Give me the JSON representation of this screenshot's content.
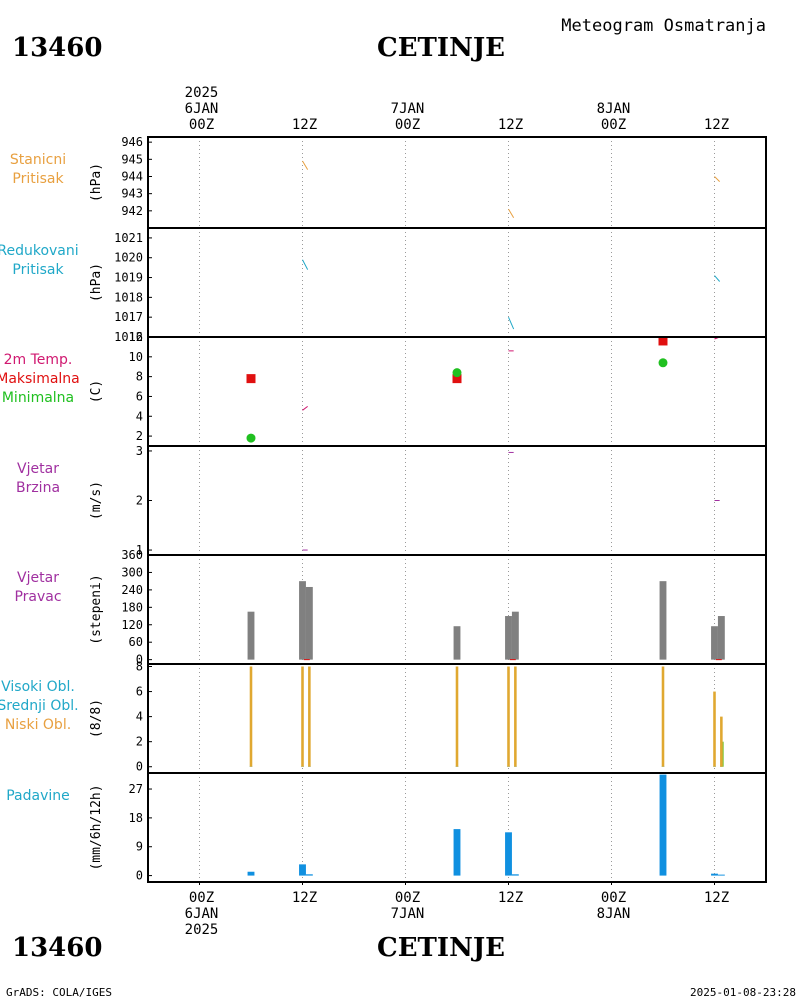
{
  "header": {
    "station_id": "13460",
    "station_name": "CETINJE",
    "chart_kind": "Meteogram Osmatranja"
  },
  "footer": {
    "station_id": "13460",
    "station_name": "CETINJE",
    "credit": "GrADS: COLA/IGES",
    "timestamp": "2025-01-08-23:28"
  },
  "chart_data": {
    "type": "meteogram",
    "time_axis": {
      "unit": "hours since 2025-01-06 00Z",
      "range": [
        -6,
        66
      ],
      "grid_hours": [
        0,
        12,
        24,
        36,
        48,
        60
      ],
      "top_labels": [
        {
          "h": 0,
          "lines": [
            "2025",
            "6JAN",
            "00Z"
          ]
        },
        {
          "h": 12,
          "lines": [
            "12Z"
          ]
        },
        {
          "h": 24,
          "lines": [
            "7JAN",
            "00Z"
          ]
        },
        {
          "h": 36,
          "lines": [
            "12Z"
          ]
        },
        {
          "h": 48,
          "lines": [
            "8JAN",
            "00Z"
          ]
        },
        {
          "h": 60,
          "lines": [
            "12Z"
          ]
        }
      ],
      "bottom_labels": [
        {
          "h": 0,
          "lines": [
            "00Z",
            "6JAN",
            "2025"
          ]
        },
        {
          "h": 12,
          "lines": [
            "12Z"
          ]
        },
        {
          "h": 24,
          "lines": [
            "00Z",
            "7JAN"
          ]
        },
        {
          "h": 36,
          "lines": [
            "12Z"
          ]
        },
        {
          "h": 48,
          "lines": [
            "00Z",
            "8JAN"
          ]
        },
        {
          "h": 60,
          "lines": [
            "12Z"
          ]
        }
      ]
    },
    "panels": [
      {
        "id": "station-pressure",
        "labels": [
          {
            "text": "Stanicni",
            "color": "#e8a040"
          },
          {
            "text": "Pritisak",
            "color": "#e8a040"
          }
        ],
        "unit": "(hPa)",
        "ylim": [
          941,
          946.3
        ],
        "ticks": [
          942,
          943,
          944,
          945,
          946
        ],
        "series": [
          {
            "name": "",
            "color": "#e8a040",
            "kind": "line",
            "points": [
              [
                12,
                944.9
              ],
              [
                12.6,
                944.4
              ],
              [
                36,
                942.1
              ],
              [
                36.6,
                941.6
              ],
              [
                60,
                944.0
              ],
              [
                60.6,
                943.7
              ]
            ]
          }
        ]
      },
      {
        "id": "reduced-pressure",
        "labels": [
          {
            "text": "Redukovani",
            "color": "#20a8c8"
          },
          {
            "text": "Pritisak",
            "color": "#20a8c8"
          }
        ],
        "unit": "(hPa)",
        "ylim": [
          1016,
          1021.5
        ],
        "ticks": [
          1016,
          1017,
          1018,
          1019,
          1020,
          1021
        ],
        "tick_labels": [
          "1016",
          "1017",
          "1018",
          "1019",
          "1020",
          "1021"
        ],
        "series": [
          {
            "name": "",
            "color": "#20a8c8",
            "kind": "line",
            "points": [
              [
                12,
                1019.9
              ],
              [
                12.6,
                1019.4
              ],
              [
                36,
                1017.0
              ],
              [
                36.6,
                1016.4
              ],
              [
                60,
                1019.1
              ],
              [
                60.6,
                1018.8
              ]
            ]
          }
        ]
      },
      {
        "id": "temperature",
        "labels": [
          {
            "text": "2m Temp.",
            "color": "#d01870"
          },
          {
            "text": "Maksimalna",
            "color": "#e01010"
          },
          {
            "text": "Minimalna",
            "color": "#20c020"
          }
        ],
        "unit": "(C)",
        "ylim": [
          1,
          12
        ],
        "ticks": [
          2,
          4,
          6,
          8,
          10,
          12
        ],
        "series": [
          {
            "name": "2m Temp.",
            "color": "#d01870",
            "kind": "line",
            "points": [
              [
                12,
                4.6
              ],
              [
                12.6,
                5.0
              ],
              [
                36,
                10.6
              ],
              [
                36.6,
                10.6
              ],
              [
                60,
                11.8
              ],
              [
                60.6,
                12.0
              ]
            ]
          },
          {
            "name": "Maksimalna",
            "color": "#e01010",
            "kind": "square",
            "points": [
              [
                6,
                7.8
              ],
              [
                30,
                7.8
              ],
              [
                54,
                11.6
              ]
            ]
          },
          {
            "name": "Minimalna",
            "color": "#20c020",
            "kind": "circle",
            "points": [
              [
                6,
                1.8
              ],
              [
                30,
                8.4
              ],
              [
                54,
                9.4
              ]
            ]
          }
        ]
      },
      {
        "id": "wind-speed",
        "labels": [
          {
            "text": "Vjetar",
            "color": "#a030a0"
          },
          {
            "text": "Brzina",
            "color": "#a030a0"
          }
        ],
        "unit": "(m/s)",
        "ylim": [
          0.9,
          3.1
        ],
        "ticks": [
          1,
          2,
          3
        ],
        "series": [
          {
            "name": "",
            "color": "#a030a0",
            "kind": "line",
            "points": [
              [
                12,
                1.0
              ],
              [
                12.6,
                1.0
              ],
              [
                36,
                2.97
              ],
              [
                36.6,
                2.97
              ],
              [
                60,
                2.0
              ],
              [
                60.6,
                2.0
              ]
            ]
          }
        ]
      },
      {
        "id": "wind-direction",
        "labels": [
          {
            "text": "Vjetar",
            "color": "#a030a0"
          },
          {
            "text": "Pravac",
            "color": "#a030a0"
          }
        ],
        "unit": "(stepeni)",
        "ylim": [
          -15,
          360
        ],
        "ticks": [
          0,
          60,
          120,
          180,
          240,
          300,
          360
        ],
        "series": [
          {
            "name": "",
            "color": "#808080",
            "kind": "bar",
            "width_h": 0.8,
            "points": [
              [
                6,
                165
              ],
              [
                12,
                270
              ],
              [
                12.8,
                250
              ],
              [
                30,
                115
              ],
              [
                36,
                150
              ],
              [
                36.8,
                165
              ],
              [
                54,
                270
              ],
              [
                60,
                115
              ],
              [
                60.8,
                150
              ]
            ]
          },
          {
            "name": "",
            "color": "#e01010",
            "kind": "tick",
            "points": [
              [
                12.5,
                0
              ],
              [
                36.5,
                0
              ],
              [
                60.5,
                0
              ]
            ]
          }
        ]
      },
      {
        "id": "clouds",
        "labels": [
          {
            "text": "Visoki Obl.",
            "color": "#20a8c8"
          },
          {
            "text": "Srednji Obl.",
            "color": "#20a8c8"
          },
          {
            "text": "Niski Obl.",
            "color": "#e8a040"
          }
        ],
        "unit": "(8/8)",
        "ylim": [
          -0.5,
          8.2
        ],
        "ticks": [
          0,
          2,
          4,
          6,
          8
        ],
        "series": [
          {
            "name": "Visoki Obl.",
            "color": "#20a8c8",
            "kind": "bar",
            "width_h": 0.3,
            "points": [
              [
                6,
                0
              ],
              [
                12,
                0
              ],
              [
                12.8,
                0
              ],
              [
                30,
                0
              ],
              [
                36,
                0
              ],
              [
                36.8,
                0
              ],
              [
                54,
                0
              ],
              [
                60,
                0
              ],
              [
                60.8,
                0
              ]
            ]
          },
          {
            "name": "Srednji Obl.",
            "color": "#80c840",
            "kind": "bar",
            "width_h": 0.35,
            "points": [
              [
                60.9,
                2
              ]
            ]
          },
          {
            "name": "Niski Obl.",
            "color": "#e0a830",
            "kind": "bar",
            "width_h": 0.3,
            "points": [
              [
                6,
                8
              ],
              [
                12,
                8
              ],
              [
                12.8,
                8
              ],
              [
                30,
                8
              ],
              [
                36,
                8
              ],
              [
                36.8,
                8
              ],
              [
                54,
                8
              ],
              [
                60,
                6
              ],
              [
                60.8,
                4
              ]
            ]
          }
        ]
      },
      {
        "id": "precipitation",
        "labels": [
          {
            "text": "Padavine",
            "color": "#20a8c8"
          }
        ],
        "unit": "(mm/6h/12h)",
        "ylim": [
          -2,
          32
        ],
        "ticks": [
          0,
          9,
          18,
          27
        ],
        "series": [
          {
            "name": "",
            "color": "#1090e0",
            "kind": "bar",
            "width_h": 0.8,
            "points": [
              [
                6,
                1.2
              ],
              [
                12,
                3.5
              ],
              [
                12.8,
                0.4
              ],
              [
                30,
                14.5
              ],
              [
                36,
                13.5
              ],
              [
                36.8,
                0.4
              ],
              [
                54,
                31.5
              ],
              [
                60,
                0.6
              ],
              [
                60.8,
                0.3
              ]
            ]
          }
        ]
      }
    ]
  }
}
